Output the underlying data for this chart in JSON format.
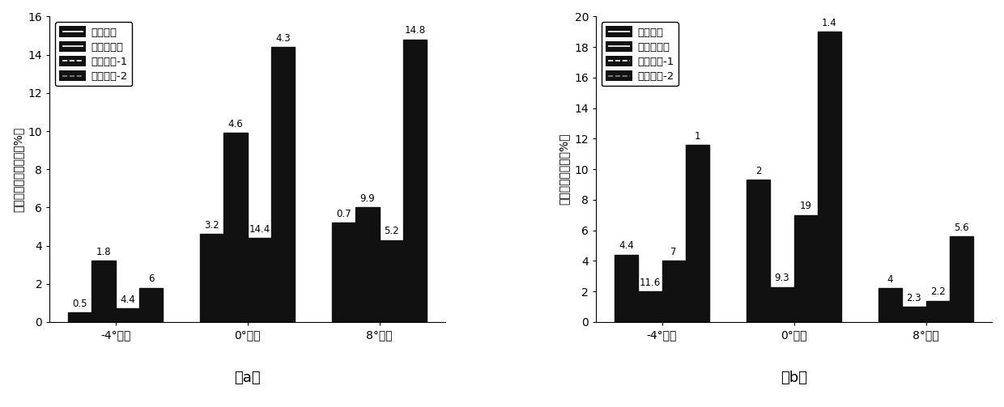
{
  "chart_a": {
    "title": "（a）",
    "ylabel": "总压损失系数变化率（%）",
    "ylim": [
      0,
      16
    ],
    "yticks": [
      0,
      2,
      4,
      6,
      8,
      10,
      12,
      14,
      16
    ],
    "groups": [
      "-4°攻角",
      "0°攻角",
      "8°攻角"
    ],
    "series": {
      "端壁激励": [
        0.5,
        4.6,
        5.2
      ],
      "吸力面激励": [
        3.2,
        9.9,
        6.0
      ],
      "优化布局-1": [
        0.7,
        4.4,
        4.3
      ],
      "优化布局-2": [
        1.8,
        14.4,
        14.8
      ]
    },
    "annotations": [
      "0.5",
      "3.2",
      "0.7",
      "1.8",
      "4.6",
      "9.9",
      "4.4",
      "14.4",
      "5.2",
      "6",
      "4.3",
      "14.8"
    ]
  },
  "chart_b": {
    "title": "（b）",
    "ylabel": "堵塞系数变化率（%）",
    "ylim": [
      0,
      20
    ],
    "yticks": [
      0,
      2,
      4,
      6,
      8,
      10,
      12,
      14,
      16,
      18,
      20
    ],
    "groups": [
      "-4°攻角",
      "0°攻角",
      "8°攻角"
    ],
    "series": {
      "端壁激励": [
        4.4,
        9.3,
        2.2
      ],
      "吸力面激励": [
        2.0,
        2.3,
        1.0
      ],
      "优化布局-1": [
        4.0,
        7.0,
        1.4
      ],
      "优化布局-2": [
        11.6,
        19.0,
        5.6
      ]
    },
    "annotations": [
      "4.4",
      "2",
      "4",
      "11.6",
      "9.3",
      "2.3",
      "7",
      "19",
      "2.2",
      "1",
      "1.4",
      "5.6"
    ]
  },
  "legend_labels": [
    "端壁激励",
    "吸力面激励",
    "优化布局-1",
    "优化布局-2"
  ],
  "bar_color": "#111111",
  "bar_width": 0.18,
  "background_color": "#ffffff",
  "tick_fontsize": 10,
  "annotation_fontsize": 8.5,
  "legend_fontsize": 9.5,
  "title_fontsize": 13
}
